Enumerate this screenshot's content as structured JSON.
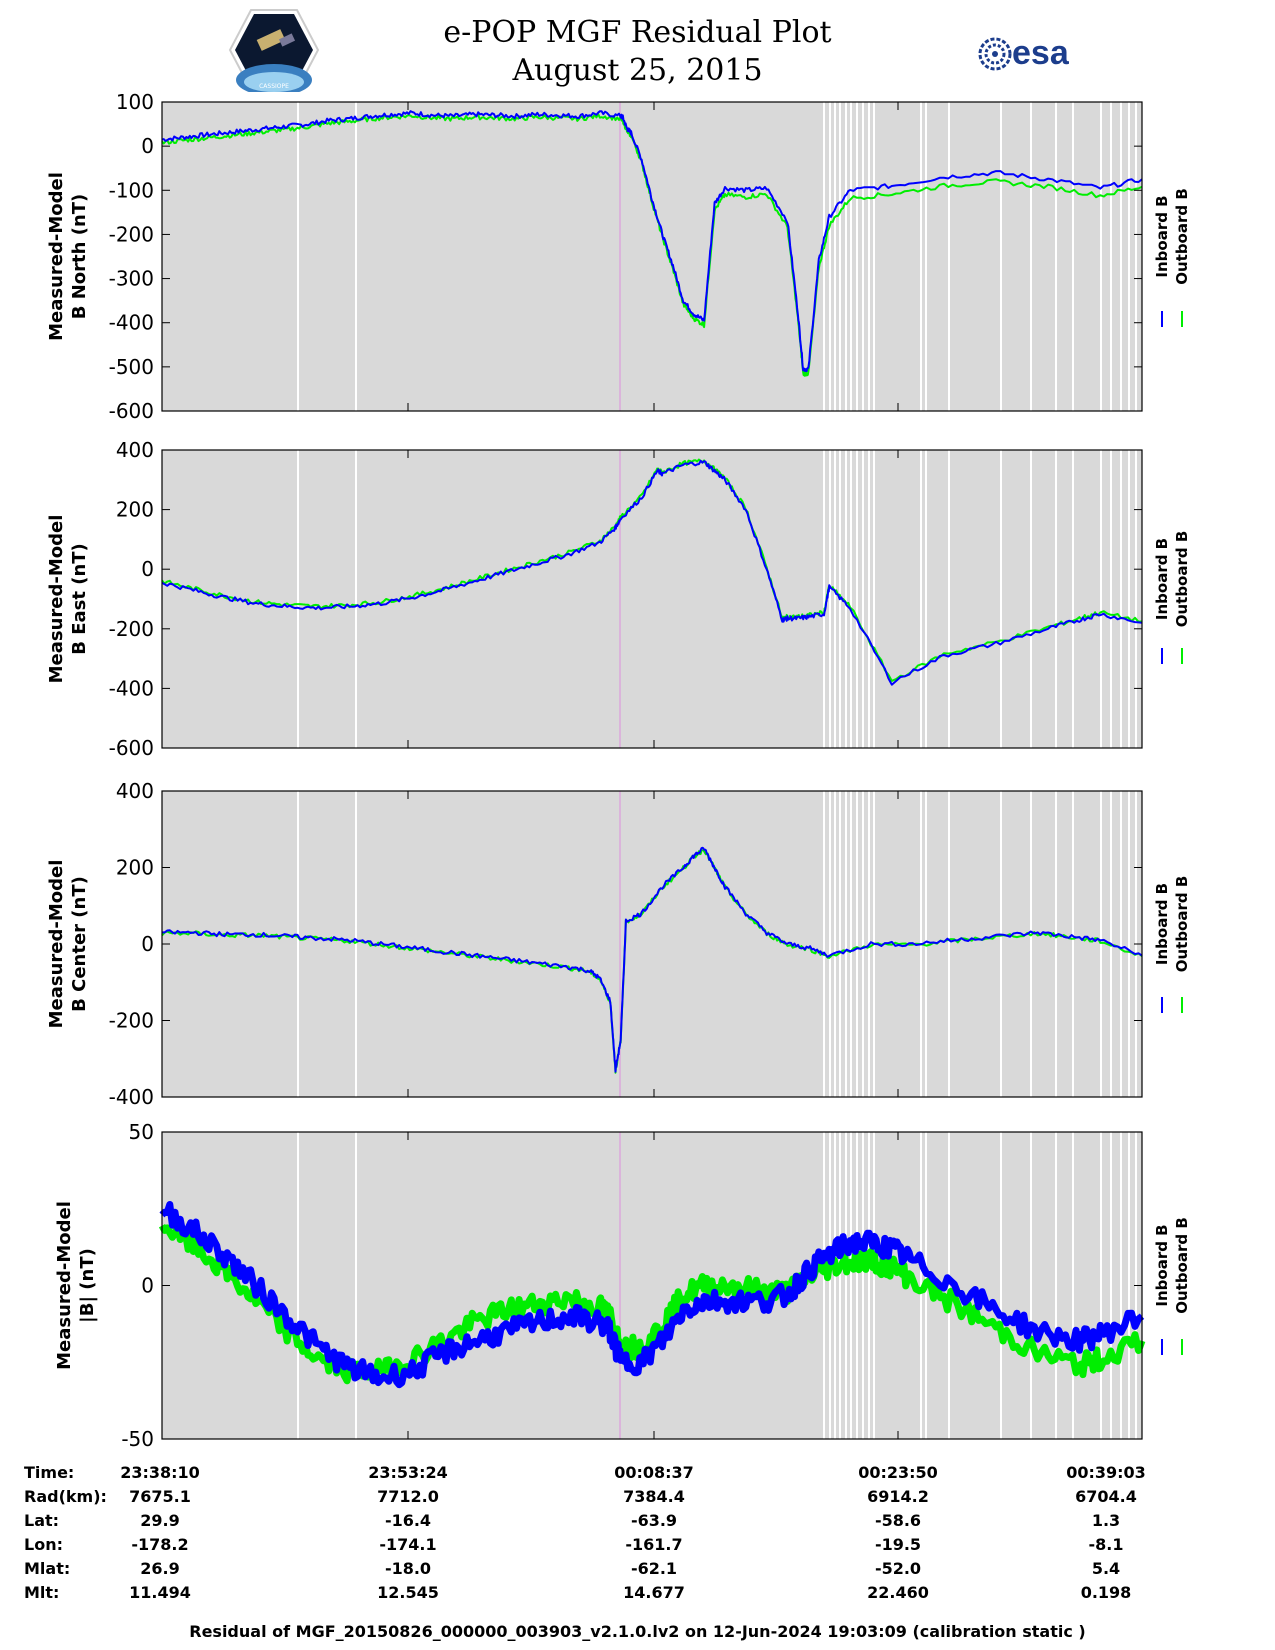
{
  "title": {
    "line1": "e-POP MGF Residual Plot",
    "line2": "August 25, 2015"
  },
  "logo_left": {
    "label": "CASSIOPE"
  },
  "logo_right": {
    "label": "esa"
  },
  "colors": {
    "inboard": "#0000ff",
    "outboard": "#00ee00",
    "panel_bg": "#d9d9d9",
    "gap": "#ffffff",
    "marker": "#e070e0"
  },
  "legend": {
    "inboard": "Inboard B",
    "outboard": "Outboard B"
  },
  "chart_data": [
    {
      "type": "line",
      "ylabel_line1": "Measured-Model",
      "ylabel_line2": "B North (nT)",
      "ylim": [
        -600,
        100
      ],
      "yticks": [
        100,
        0,
        -100,
        -200,
        -300,
        -400,
        -500,
        -600
      ],
      "ytick_labels": [
        "100",
        "0",
        "-100",
        "-200",
        "-300",
        "-400",
        "-500",
        "-600"
      ],
      "x": [
        0,
        20,
        40,
        60,
        80,
        100,
        120,
        140,
        160,
        180,
        200,
        220,
        240,
        260,
        280,
        300,
        320,
        340,
        360,
        380,
        400,
        420,
        440,
        442,
        446,
        450,
        460,
        470,
        480,
        490,
        500,
        510,
        520,
        530,
        540,
        560,
        580,
        600,
        610,
        615,
        620,
        630,
        640,
        660,
        700,
        750,
        800,
        850,
        900,
        940
      ],
      "series": [
        {
          "name": "Inboard B",
          "values": [
            15,
            20,
            25,
            30,
            35,
            40,
            45,
            50,
            58,
            62,
            68,
            72,
            75,
            70,
            68,
            72,
            70,
            68,
            72,
            70,
            68,
            75,
            68,
            65,
            40,
            30,
            -30,
            -120,
            -200,
            -270,
            -350,
            -380,
            -395,
            -130,
            -95,
            -100,
            -95,
            -170,
            -380,
            -505,
            -505,
            -260,
            -160,
            -100,
            -90,
            -70,
            -60,
            -75,
            -95,
            -75
          ]
        },
        {
          "name": "Outboard B",
          "values": [
            8,
            13,
            18,
            23,
            28,
            33,
            38,
            44,
            52,
            56,
            62,
            66,
            69,
            64,
            62,
            66,
            64,
            62,
            66,
            64,
            62,
            69,
            62,
            59,
            34,
            24,
            -36,
            -126,
            -206,
            -278,
            -358,
            -390,
            -405,
            -145,
            -110,
            -115,
            -108,
            -184,
            -392,
            -515,
            -515,
            -275,
            -180,
            -118,
            -108,
            -90,
            -80,
            -92,
            -112,
            -92
          ]
        }
      ]
    },
    {
      "type": "line",
      "ylabel_line1": "Measured-Model",
      "ylabel_line2": "B East (nT)",
      "ylim": [
        -600,
        400
      ],
      "yticks": [
        400,
        200,
        0,
        -200,
        -400,
        -600
      ],
      "ytick_labels": [
        "400",
        "200",
        "0",
        "-200",
        "-400",
        "-600"
      ],
      "x": [
        0,
        30,
        60,
        90,
        120,
        150,
        180,
        210,
        240,
        270,
        300,
        330,
        360,
        390,
        420,
        435,
        440,
        460,
        475,
        480,
        500,
        520,
        530,
        540,
        560,
        580,
        595,
        600,
        610,
        620,
        635,
        640,
        660,
        700,
        750,
        800,
        850,
        880,
        900,
        940
      ],
      "series": [
        {
          "name": "Inboard B",
          "values": [
            -45,
            -70,
            -95,
            -115,
            -125,
            -130,
            -125,
            -115,
            -95,
            -70,
            -40,
            -10,
            20,
            50,
            90,
            140,
            170,
            240,
            330,
            320,
            350,
            360,
            330,
            300,
            200,
            0,
            -170,
            -165,
            -165,
            -160,
            -150,
            -60,
            -130,
            -380,
            -290,
            -250,
            -200,
            -170,
            -150,
            -180
          ]
        },
        {
          "name": "Outboard B",
          "values": [
            -40,
            -65,
            -90,
            -110,
            -120,
            -125,
            -120,
            -110,
            -90,
            -65,
            -35,
            -5,
            25,
            55,
            95,
            145,
            175,
            245,
            335,
            325,
            355,
            365,
            335,
            305,
            205,
            5,
            -165,
            -160,
            -160,
            -155,
            -145,
            -55,
            -125,
            -375,
            -285,
            -245,
            -195,
            -165,
            -145,
            -175
          ]
        }
      ]
    },
    {
      "type": "line",
      "ylabel_line1": "Measured-Model",
      "ylabel_line2": "B Center (nT)",
      "ylim": [
        -400,
        400
      ],
      "yticks": [
        400,
        200,
        0,
        -200,
        -400
      ],
      "ytick_labels": [
        "400",
        "200",
        "0",
        "-200",
        "-400"
      ],
      "x": [
        0,
        30,
        60,
        90,
        120,
        150,
        180,
        210,
        240,
        270,
        300,
        330,
        360,
        390,
        410,
        420,
        430,
        435,
        440,
        445,
        460,
        480,
        500,
        510,
        520,
        530,
        540,
        560,
        580,
        600,
        620,
        640,
        680,
        720,
        760,
        800,
        840,
        870,
        900,
        940
      ],
      "series": [
        {
          "name": "Inboard B",
          "values": [
            30,
            30,
            25,
            25,
            20,
            15,
            10,
            0,
            -10,
            -20,
            -30,
            -40,
            -50,
            -60,
            -70,
            -90,
            -150,
            -330,
            -250,
            60,
            80,
            150,
            200,
            230,
            250,
            200,
            150,
            80,
            30,
            0,
            -10,
            -30,
            0,
            0,
            10,
            20,
            30,
            20,
            10,
            -30
          ]
        },
        {
          "name": "Outboard B",
          "values": [
            28,
            28,
            23,
            23,
            18,
            13,
            8,
            -2,
            -12,
            -22,
            -32,
            -42,
            -52,
            -62,
            -72,
            -92,
            -152,
            -332,
            -252,
            58,
            78,
            148,
            198,
            228,
            248,
            198,
            148,
            78,
            28,
            -2,
            -12,
            -32,
            -2,
            -2,
            8,
            18,
            28,
            18,
            8,
            -32
          ]
        }
      ]
    },
    {
      "type": "line",
      "ylabel_line1": "Measured-Model",
      "ylabel_line2": "|B| (nT)",
      "ylim": [
        -50,
        50
      ],
      "yticks": [
        50,
        0,
        -50
      ],
      "ytick_labels": [
        "50",
        "0",
        "-50"
      ],
      "x": [
        0,
        30,
        60,
        90,
        120,
        150,
        180,
        210,
        240,
        270,
        300,
        330,
        360,
        390,
        420,
        430,
        440,
        460,
        480,
        500,
        520,
        550,
        580,
        600,
        620,
        640,
        660,
        680,
        700,
        720,
        760,
        800,
        840,
        880,
        900,
        940
      ],
      "series": [
        {
          "name": "Inboard B",
          "values": [
            25,
            18,
            10,
            0,
            -10,
            -20,
            -27,
            -30,
            -28,
            -22,
            -18,
            -15,
            -12,
            -10,
            -12,
            -15,
            -25,
            -25,
            -18,
            -8,
            -5,
            -5,
            -5,
            -3,
            5,
            10,
            14,
            14,
            12,
            8,
            0,
            -8,
            -15,
            -18,
            -16,
            -10
          ]
        },
        {
          "name": "Outboard B",
          "values": [
            20,
            13,
            5,
            -5,
            -15,
            -24,
            -28,
            -28,
            -24,
            -18,
            -12,
            -8,
            -6,
            -4,
            -7,
            -10,
            -20,
            -20,
            -13,
            -3,
            0,
            0,
            -2,
            -2,
            3,
            6,
            8,
            8,
            6,
            2,
            -6,
            -14,
            -22,
            -26,
            -24,
            -18
          ]
        }
      ]
    }
  ],
  "info_table": {
    "rows": [
      {
        "label": "Time:",
        "values": [
          "23:38:10",
          "23:53:24",
          "00:08:37",
          "00:23:50",
          "00:39:03"
        ]
      },
      {
        "label": "Rad(km):",
        "values": [
          "7675.1",
          "7712.0",
          "7384.4",
          "6914.2",
          "6704.4"
        ]
      },
      {
        "label": "Lat:",
        "values": [
          "29.9",
          "-16.4",
          "-63.9",
          "-58.6",
          "1.3"
        ]
      },
      {
        "label": "Lon:",
        "values": [
          "-178.2",
          "-174.1",
          "-161.7",
          "-19.5",
          "-8.1"
        ]
      },
      {
        "label": "Mlat:",
        "values": [
          "26.9",
          "-18.0",
          "-62.1",
          "-52.0",
          "5.4"
        ]
      },
      {
        "label": "Mlt:",
        "values": [
          "11.494",
          "12.545",
          "14.677",
          "22.460",
          "0.198"
        ]
      }
    ]
  },
  "footer": "Residual of MGF_20150826_000000_003903_v2.1.0.lv2 on 12-Jun-2024 19:03:09 (calibration static )"
}
